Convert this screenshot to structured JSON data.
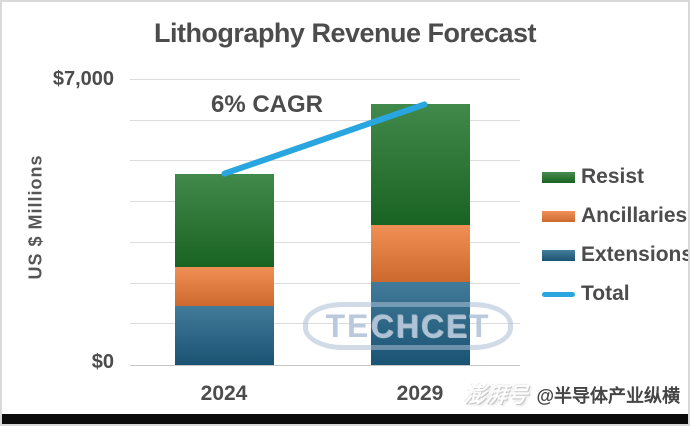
{
  "chart_data": {
    "type": "bar",
    "stacked": true,
    "title": "Lithography Revenue Forecast",
    "annotation": "6% CAGR",
    "ylabel": "US $ Millions",
    "categories": [
      "2024",
      "2029"
    ],
    "series": [
      {
        "name": "Extensions",
        "color": "#1E6186",
        "values": [
          1450,
          2050
        ]
      },
      {
        "name": "Ancillaries",
        "color": "#EE7A35",
        "values": [
          950,
          1400
        ]
      },
      {
        "name": "Resist",
        "color": "#1D7328",
        "values": [
          2300,
          2950
        ]
      }
    ],
    "line_series": {
      "name": "Total",
      "color": "#29A6DF",
      "values": [
        4700,
        6400
      ]
    },
    "ylim": [
      0,
      7000
    ],
    "gridline_step": 1000,
    "grid": true,
    "yticks": [
      {
        "value": 7000,
        "label": "$7,000"
      },
      {
        "value": 0,
        "label": "$0"
      }
    ],
    "legend": {
      "position": "right",
      "items": [
        {
          "label": "Resist",
          "type": "box",
          "color": "#1D7328"
        },
        {
          "label": "Ancillaries",
          "type": "box",
          "color": "#EE7A35"
        },
        {
          "label": "Extensions",
          "type": "box",
          "color": "#1E6186"
        },
        {
          "label": "Total",
          "type": "line",
          "color": "#29A6DF"
        }
      ]
    }
  },
  "watermarks": {
    "vendor_logo": "TECHCET",
    "platform_logo": "澎湃号",
    "account_handle": "@半导体产业纵横"
  }
}
